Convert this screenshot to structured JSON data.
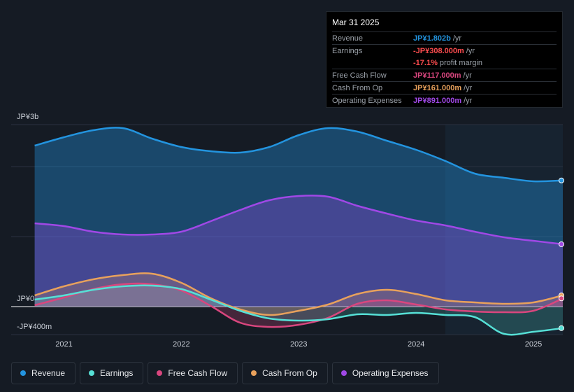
{
  "tooltip": {
    "date": "Mar 31 2025",
    "rows": [
      {
        "label": "Revenue",
        "value": "JP¥1.802b",
        "unit": "/yr",
        "color": "#2394df"
      },
      {
        "label": "Earnings",
        "value": "-JP¥308.000m",
        "unit": "/yr",
        "color": "#ff4d4f"
      },
      {
        "label": "",
        "value": "-17.1%",
        "unit": "profit margin",
        "color": "#ff4d4f"
      },
      {
        "label": "Free Cash Flow",
        "value": "JP¥117.000m",
        "unit": "/yr",
        "color": "#d9467e"
      },
      {
        "label": "Cash From Op",
        "value": "JP¥161.000m",
        "unit": "/yr",
        "color": "#e8a15c"
      },
      {
        "label": "Operating Expenses",
        "value": "JP¥891.000m",
        "unit": "/yr",
        "color": "#a048e6"
      }
    ]
  },
  "legend": [
    {
      "label": "Revenue",
      "color": "#2394df"
    },
    {
      "label": "Earnings",
      "color": "#56e0d6"
    },
    {
      "label": "Free Cash Flow",
      "color": "#d9467e"
    },
    {
      "label": "Cash From Op",
      "color": "#e8a15c"
    },
    {
      "label": "Operating Expenses",
      "color": "#a048e6"
    }
  ],
  "chart_data": {
    "type": "area",
    "title": "",
    "unit": "JP¥ millions",
    "ylim": [
      -400,
      2600
    ],
    "y_tick_labels": [
      {
        "value": 2600,
        "label": "JP¥3b"
      },
      {
        "value": 0,
        "label": "JP¥0"
      },
      {
        "value": -400,
        "label": "-JP¥400m"
      }
    ],
    "x_tick_labels": [
      {
        "value": 2021.0,
        "label": "2021"
      },
      {
        "value": 2022.0,
        "label": "2022"
      },
      {
        "value": 2023.0,
        "label": "2023"
      },
      {
        "value": 2024.0,
        "label": "2024"
      },
      {
        "value": 2025.0,
        "label": "2025"
      }
    ],
    "xlim": [
      2020.55,
      2025.25
    ],
    "forecast_start": 2024.25,
    "series": [
      {
        "name": "Revenue",
        "color": "#2394df",
        "x": [
          2020.75,
          2021.0,
          2021.25,
          2021.5,
          2021.75,
          2022.0,
          2022.25,
          2022.5,
          2022.75,
          2023.0,
          2023.25,
          2023.5,
          2023.75,
          2024.0,
          2024.25,
          2024.5,
          2024.75,
          2025.0,
          2025.25
        ],
        "values": [
          2300,
          2420,
          2520,
          2550,
          2400,
          2280,
          2220,
          2200,
          2280,
          2450,
          2550,
          2500,
          2370,
          2240,
          2080,
          1900,
          1840,
          1790,
          1802
        ]
      },
      {
        "name": "Operating Expenses",
        "color": "#a048e6",
        "x": [
          2020.75,
          2021.0,
          2021.25,
          2021.5,
          2021.75,
          2022.0,
          2022.25,
          2022.5,
          2022.75,
          2023.0,
          2023.25,
          2023.5,
          2023.75,
          2024.0,
          2024.25,
          2024.5,
          2024.75,
          2025.0,
          2025.25
        ],
        "values": [
          1190,
          1150,
          1070,
          1030,
          1030,
          1070,
          1220,
          1380,
          1520,
          1580,
          1570,
          1440,
          1330,
          1230,
          1160,
          1070,
          990,
          940,
          891
        ]
      },
      {
        "name": "Cash From Op",
        "color": "#e8a15c",
        "x": [
          2020.75,
          2021.0,
          2021.25,
          2021.5,
          2021.75,
          2022.0,
          2022.25,
          2022.5,
          2022.75,
          2023.0,
          2023.25,
          2023.5,
          2023.75,
          2024.0,
          2024.25,
          2024.5,
          2024.75,
          2025.0,
          2025.25
        ],
        "values": [
          160,
          290,
          390,
          450,
          470,
          340,
          120,
          -40,
          -120,
          -60,
          30,
          180,
          240,
          180,
          90,
          60,
          40,
          60,
          161
        ]
      },
      {
        "name": "Free Cash Flow",
        "color": "#d9467e",
        "x": [
          2020.75,
          2021.0,
          2021.25,
          2021.5,
          2021.75,
          2022.0,
          2022.25,
          2022.5,
          2022.75,
          2023.0,
          2023.25,
          2023.5,
          2023.75,
          2024.0,
          2024.25,
          2024.5,
          2024.75,
          2025.0,
          2025.25
        ],
        "values": [
          20,
          130,
          250,
          320,
          320,
          230,
          10,
          -230,
          -290,
          -260,
          -160,
          40,
          90,
          30,
          -40,
          -70,
          -80,
          -60,
          117
        ]
      },
      {
        "name": "Earnings",
        "color": "#56e0d6",
        "x": [
          2020.75,
          2021.0,
          2021.25,
          2021.5,
          2021.75,
          2022.0,
          2022.25,
          2022.5,
          2022.75,
          2023.0,
          2023.25,
          2023.5,
          2023.75,
          2024.0,
          2024.25,
          2024.5,
          2024.75,
          2025.0,
          2025.25
        ],
        "values": [
          100,
          160,
          240,
          290,
          300,
          250,
          100,
          -60,
          -170,
          -200,
          -180,
          -110,
          -120,
          -90,
          -120,
          -150,
          -390,
          -360,
          -308
        ]
      }
    ]
  }
}
